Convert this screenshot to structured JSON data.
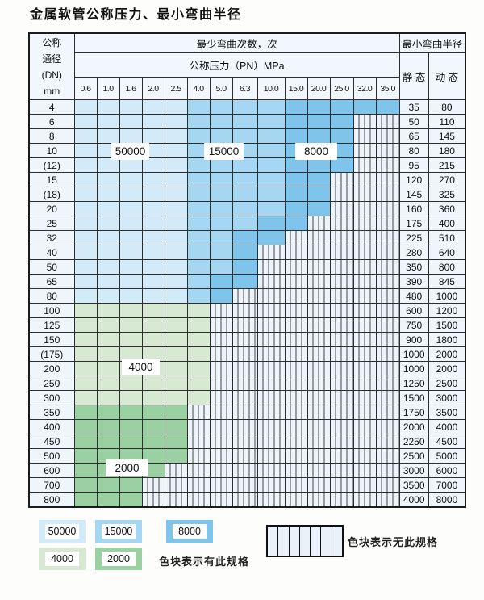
{
  "title": "金属软管公称压力、最小弯曲半径",
  "table": {
    "header": {
      "dn_lines": [
        "公称",
        "通径",
        "(DN)",
        "mm"
      ],
      "bend_count_label": "最少弯曲次数，次",
      "pressure_label": "公称压力（PN）MPa",
      "bend_radius_label": "最小弯曲半径",
      "static_label": "静 态",
      "dynamic_label": "动 态",
      "pressure_columns": [
        "0.6",
        "1.0",
        "1.6",
        "2.0",
        "2.5",
        "4.0",
        "5.0",
        "6.3",
        "10.0",
        "15.0",
        "20.0",
        "25.0",
        "32.0",
        "35.0"
      ]
    },
    "rows": [
      {
        "dn": "4",
        "segments": [
          [
            "light_blue",
            5
          ],
          [
            "medium_blue",
            4
          ],
          [
            "dark_blue",
            5
          ]
        ],
        "static": "35",
        "dynamic": "80"
      },
      {
        "dn": "6",
        "segments": [
          [
            "light_blue",
            5
          ],
          [
            "medium_blue",
            4
          ],
          [
            "dark_blue",
            3
          ]
        ],
        "static": "50",
        "dynamic": "110"
      },
      {
        "dn": "8",
        "segments": [
          [
            "light_blue",
            5
          ],
          [
            "medium_blue",
            4
          ],
          [
            "dark_blue",
            3
          ]
        ],
        "static": "65",
        "dynamic": "145"
      },
      {
        "dn": "10",
        "segments": [
          [
            "light_blue",
            5
          ],
          [
            "medium_blue",
            4
          ],
          [
            "dark_blue",
            3
          ]
        ],
        "static": "80",
        "dynamic": "180"
      },
      {
        "dn": "(12)",
        "segments": [
          [
            "light_blue",
            5
          ],
          [
            "medium_blue",
            4
          ],
          [
            "dark_blue",
            3
          ]
        ],
        "static": "95",
        "dynamic": "215"
      },
      {
        "dn": "15",
        "segments": [
          [
            "light_blue",
            5
          ],
          [
            "medium_blue",
            4
          ],
          [
            "dark_blue",
            2
          ]
        ],
        "static": "120",
        "dynamic": "270"
      },
      {
        "dn": "(18)",
        "segments": [
          [
            "light_blue",
            5
          ],
          [
            "medium_blue",
            4
          ],
          [
            "dark_blue",
            2
          ]
        ],
        "static": "145",
        "dynamic": "325"
      },
      {
        "dn": "20",
        "segments": [
          [
            "light_blue",
            5
          ],
          [
            "medium_blue",
            4
          ],
          [
            "dark_blue",
            2
          ]
        ],
        "static": "160",
        "dynamic": "360"
      },
      {
        "dn": "25",
        "segments": [
          [
            "light_blue",
            5
          ],
          [
            "medium_blue",
            3
          ],
          [
            "dark_blue",
            2
          ]
        ],
        "static": "175",
        "dynamic": "400"
      },
      {
        "dn": "32",
        "segments": [
          [
            "light_blue",
            5
          ],
          [
            "medium_blue",
            2
          ],
          [
            "dark_blue",
            2
          ]
        ],
        "static": "225",
        "dynamic": "510"
      },
      {
        "dn": "40",
        "segments": [
          [
            "light_blue",
            5
          ],
          [
            "medium_blue",
            2
          ],
          [
            "dark_blue",
            1
          ]
        ],
        "static": "280",
        "dynamic": "640"
      },
      {
        "dn": "50",
        "segments": [
          [
            "light_blue",
            5
          ],
          [
            "medium_blue",
            2
          ],
          [
            "dark_blue",
            1
          ]
        ],
        "static": "350",
        "dynamic": "800"
      },
      {
        "dn": "65",
        "segments": [
          [
            "light_blue",
            5
          ],
          [
            "medium_blue",
            1
          ],
          [
            "dark_blue",
            2
          ]
        ],
        "static": "390",
        "dynamic": "845"
      },
      {
        "dn": "80",
        "segments": [
          [
            "light_blue",
            5
          ],
          [
            "medium_blue",
            1
          ],
          [
            "dark_blue",
            1
          ]
        ],
        "static": "480",
        "dynamic": "1000"
      },
      {
        "dn": "100",
        "segments": [
          [
            "light_green",
            6
          ]
        ],
        "static": "600",
        "dynamic": "1200"
      },
      {
        "dn": "125",
        "segments": [
          [
            "light_green",
            6
          ]
        ],
        "static": "750",
        "dynamic": "1500"
      },
      {
        "dn": "150",
        "segments": [
          [
            "light_green",
            6
          ]
        ],
        "static": "900",
        "dynamic": "1800"
      },
      {
        "dn": "(175)",
        "segments": [
          [
            "light_green",
            6
          ]
        ],
        "static": "1000",
        "dynamic": "2000"
      },
      {
        "dn": "200",
        "segments": [
          [
            "light_green",
            6
          ]
        ],
        "static": "1000",
        "dynamic": "2000"
      },
      {
        "dn": "250",
        "segments": [
          [
            "light_green",
            6
          ]
        ],
        "static": "1250",
        "dynamic": "2500"
      },
      {
        "dn": "300",
        "segments": [
          [
            "light_green",
            6
          ]
        ],
        "static": "1500",
        "dynamic": "3000"
      },
      {
        "dn": "350",
        "segments": [
          [
            "medium_green",
            5
          ]
        ],
        "static": "1750",
        "dynamic": "3500"
      },
      {
        "dn": "400",
        "segments": [
          [
            "medium_green",
            5
          ]
        ],
        "static": "2000",
        "dynamic": "4000"
      },
      {
        "dn": "450",
        "segments": [
          [
            "medium_green",
            5
          ]
        ],
        "static": "2250",
        "dynamic": "4500"
      },
      {
        "dn": "500",
        "segments": [
          [
            "medium_green",
            5
          ]
        ],
        "static": "2500",
        "dynamic": "5000"
      },
      {
        "dn": "600",
        "segments": [
          [
            "medium_green",
            4
          ]
        ],
        "static": "3000",
        "dynamic": "6000"
      },
      {
        "dn": "700",
        "segments": [
          [
            "medium_green",
            3
          ]
        ],
        "static": "3500",
        "dynamic": "7000"
      },
      {
        "dn": "800",
        "segments": [
          [
            "medium_green",
            3
          ]
        ],
        "static": "4000",
        "dynamic": "8000"
      }
    ]
  },
  "overlays": {
    "blue_50000": "50000",
    "blue_15000": "15000",
    "blue_8000": "8000",
    "green_4000": "4000",
    "green_2000": "2000"
  },
  "legend": {
    "row1": [
      {
        "label": "50000",
        "color": "light_blue"
      },
      {
        "label": "15000",
        "color": "medium_blue"
      },
      {
        "label": "8000",
        "color": "dark_blue"
      }
    ],
    "row2": [
      {
        "label": "4000",
        "color": "light_green"
      },
      {
        "label": "2000",
        "color": "medium_green"
      }
    ],
    "has_spec_text": "色块表示有此规格",
    "no_spec_text": "色块表示无此规格"
  },
  "colors": {
    "light_blue": "#d3eaf8",
    "medium_blue": "#a6d7f2",
    "dark_blue": "#7fc4ea",
    "light_green": "#d7e9d3",
    "medium_green": "#9ad0a2",
    "hatch_bg": "#edf3fa"
  }
}
